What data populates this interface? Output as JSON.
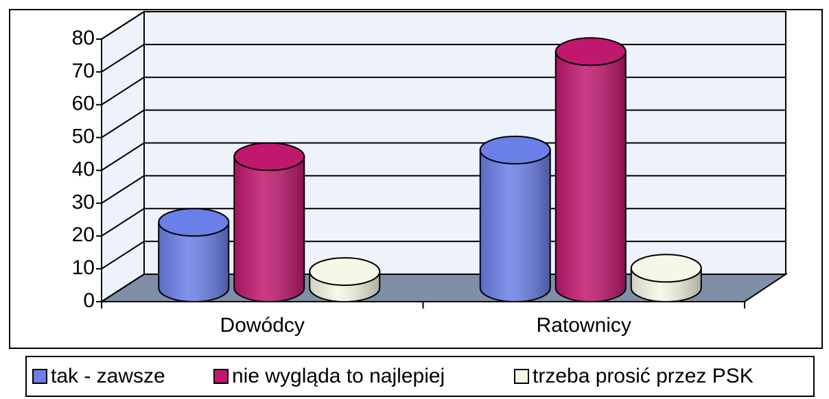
{
  "chart_data": {
    "type": "bar3d",
    "categories": [
      "Dowódcy",
      "Ratownicy"
    ],
    "series": [
      {
        "name": "tak - zawsze",
        "color": "#6b7fe8",
        "values": [
          20,
          42
        ]
      },
      {
        "name": "nie wygląda to najlepiej",
        "color": "#c0186e",
        "values": [
          40,
          72
        ]
      },
      {
        "name": "trzeba prosić przez PSK",
        "color": "#f6f7e6",
        "values": [
          5,
          6
        ]
      }
    ],
    "ylim": [
      0,
      80
    ],
    "yticks": [
      0,
      10,
      20,
      30,
      40,
      50,
      60,
      70,
      80
    ],
    "grid": true
  }
}
